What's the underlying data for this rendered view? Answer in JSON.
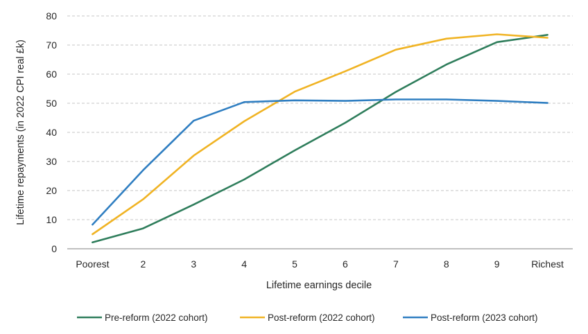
{
  "chart_data": {
    "type": "line",
    "title": "",
    "xlabel": "Lifetime earnings decile",
    "ylabel": "Lifetime repayments (in 2022 CPI real £k)",
    "ylim": [
      0,
      80
    ],
    "yticks": [
      "0",
      "10",
      "20",
      "30",
      "40",
      "50",
      "60",
      "70",
      "80"
    ],
    "grid": true,
    "legend_position": "bottom",
    "categories": [
      "Poorest",
      "2",
      "3",
      "4",
      "5",
      "6",
      "7",
      "8",
      "9",
      "Richest"
    ],
    "series": [
      {
        "name": "Pre-reform (2022 cohort)",
        "color": "#2e7d5b",
        "values": [
          2.2,
          7.0,
          15.2,
          23.8,
          33.8,
          43.3,
          53.9,
          63.3,
          71.0,
          73.5
        ]
      },
      {
        "name": "Post-reform (2022 cohort)",
        "color": "#f0b323",
        "values": [
          5.0,
          17.0,
          32.0,
          43.8,
          54.0,
          61.0,
          68.4,
          72.2,
          73.7,
          72.5
        ]
      },
      {
        "name": "Post-reform (2023 cohort)",
        "color": "#2f7ec1",
        "values": [
          8.3,
          27.0,
          44.0,
          50.4,
          51.0,
          50.8,
          51.3,
          51.3,
          50.8,
          50.1
        ]
      }
    ]
  }
}
